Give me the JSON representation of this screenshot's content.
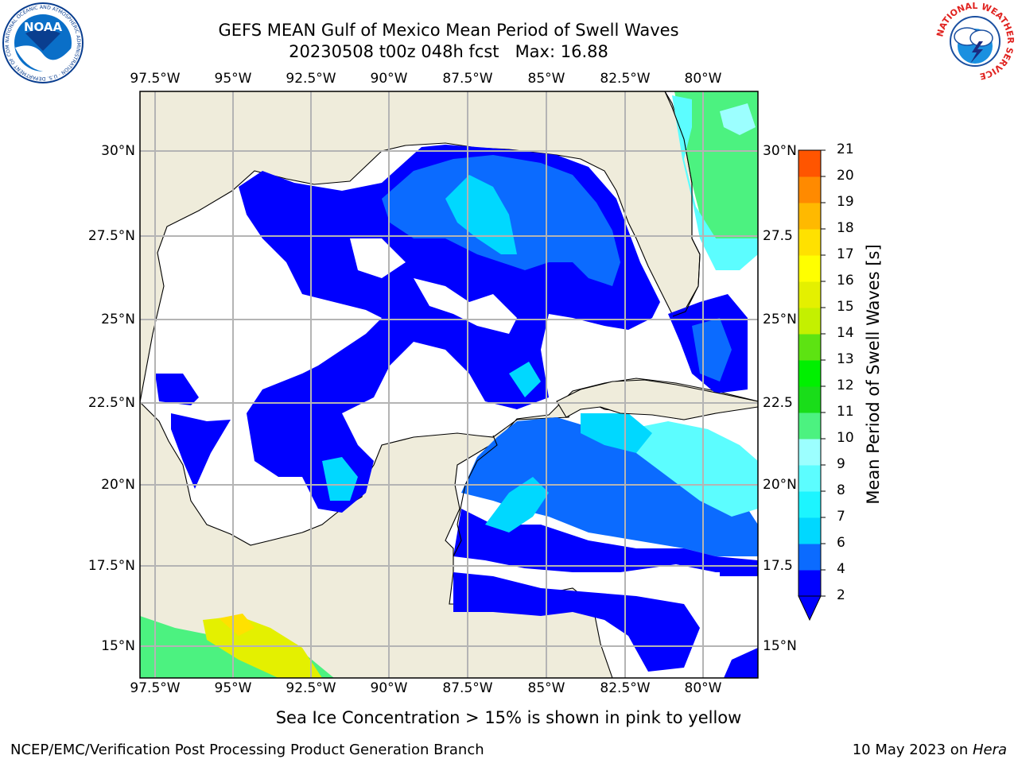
{
  "header": {
    "title_line1": "GEFS MEAN Gulf of Mexico Mean Period of Swell Waves",
    "title_line2": "20230508 t00z 048h fcst   Max: 16.88"
  },
  "map": {
    "lon_labels": [
      "97.5°W",
      "95°W",
      "92.5°W",
      "90°W",
      "87.5°W",
      "85°W",
      "82.5°W",
      "80°W"
    ],
    "lat_labels_left": [
      "30°N",
      "27.5°N",
      "25°N",
      "22.5°N",
      "20°N",
      "17.5°N",
      "15°N"
    ],
    "lat_labels_right": [
      "30°N",
      "27.5",
      "25°N",
      "22.5",
      "20°N",
      "17.5",
      "15°N"
    ],
    "land_color": "#efecdb",
    "ocean_color": "#ffffff"
  },
  "colorbar": {
    "label": "Mean Period of Swell Waves [s]",
    "ticks": [
      "2",
      "4",
      "6",
      "7",
      "8",
      "9",
      "10",
      "11",
      "12",
      "13",
      "14",
      "15",
      "16",
      "17",
      "18",
      "19",
      "20",
      "21"
    ],
    "colors": [
      "#0000ff",
      "#0b6bff",
      "#00d8ff",
      "#1cf5ff",
      "#5cfdff",
      "#9cffff",
      "#4cf280",
      "#19dd19",
      "#00f000",
      "#5de312",
      "#c4f000",
      "#e4f000",
      "#ffff00",
      "#ffe100",
      "#ffb900",
      "#ff8a00",
      "#ff5500",
      "#ff3000",
      "#ff0000"
    ]
  },
  "icons": {
    "noaa_text": "NOAA",
    "noaa_ring": "NATIONAL OCEANIC AND ATMOSPHERIC ADMINISTRATION · U.S. DEPARTMENT OF COMMERCE ·",
    "nws_ring": "NATIONAL WEATHER SERVICE"
  },
  "notes": {
    "sea_ice": "Sea Ice Concentration > 15% is shown in pink to yellow"
  },
  "footer": {
    "left": "NCEP/EMC/Verification Post Processing Product Generation Branch",
    "date": "10 May 2023 on ",
    "machine": "Hera"
  }
}
